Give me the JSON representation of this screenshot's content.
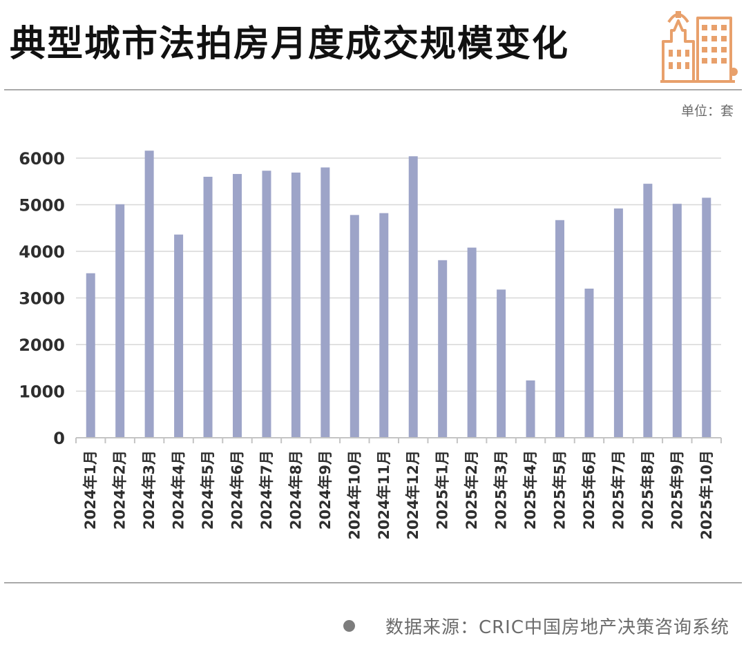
{
  "header": {
    "title": "典型城市法拍房月度成交规模变化",
    "unit_label": "单位：套",
    "logo_icon": "city-buildings-icon"
  },
  "footer": {
    "source_label": "数据来源：CRIC中国房地产决策咨询系统"
  },
  "colors": {
    "bar": "#9da4c8",
    "grid": "#d7d7d7",
    "axis": "#c4c4c4",
    "logo": "#e8a06b",
    "title": "#111111"
  },
  "chart_data": {
    "type": "bar",
    "title": "典型城市法拍房月度成交规模变化",
    "unit": "单位：套",
    "categories": [
      "2024年1月",
      "2024年2月",
      "2024年3月",
      "2024年4月",
      "2024年5月",
      "2024年6月",
      "2024年7月",
      "2024年8月",
      "2024年9月",
      "2024年10月",
      "2024年11月",
      "2024年12月",
      "2025年1月",
      "2025年2月",
      "2025年3月",
      "2025年4月",
      "2025年5月",
      "2025年6月",
      "2025年7月",
      "2025年8月",
      "2025年9月",
      "2025年10月"
    ],
    "values": [
      3530,
      5010,
      6160,
      4360,
      5600,
      5660,
      5730,
      5690,
      5800,
      4780,
      4820,
      6040,
      3810,
      4080,
      3180,
      1230,
      4670,
      3200,
      4920,
      5450,
      5020,
      5150
    ],
    "ylim": [
      0,
      6000
    ],
    "yticks": [
      0,
      1000,
      2000,
      3000,
      4000,
      5000,
      6000
    ],
    "grid": true,
    "legend": "none"
  }
}
